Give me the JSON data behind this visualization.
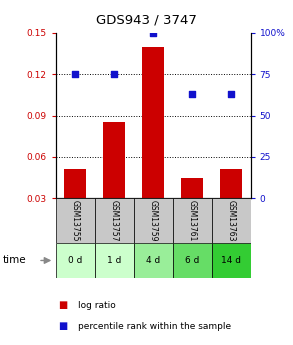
{
  "title": "GDS943 / 3747",
  "samples": [
    "GSM13755",
    "GSM13757",
    "GSM13759",
    "GSM13761",
    "GSM13763"
  ],
  "time_labels": [
    "0 d",
    "1 d",
    "4 d",
    "6 d",
    "14 d"
  ],
  "log_ratio": [
    0.051,
    0.085,
    0.14,
    0.045,
    0.051
  ],
  "percentile_rank": [
    75,
    75,
    100,
    63,
    63
  ],
  "left_ylim": [
    0.03,
    0.15
  ],
  "left_yticks": [
    0.03,
    0.06,
    0.09,
    0.12,
    0.15
  ],
  "left_yticklabels": [
    "0.03",
    "0.06",
    "0.09",
    "0.12",
    "0.15"
  ],
  "right_ylim": [
    0,
    100
  ],
  "right_yticks": [
    0,
    25,
    50,
    75,
    100
  ],
  "right_yticklabels": [
    "0",
    "25",
    "50",
    "75",
    "100%"
  ],
  "bar_color": "#cc0000",
  "dot_color": "#1111cc",
  "bar_width": 0.55,
  "sample_box_color": "#c8c8c8",
  "time_box_colors": [
    "#ccffcc",
    "#ccffcc",
    "#99ee99",
    "#66dd66",
    "#33cc33"
  ],
  "legend_bar_label": "log ratio",
  "legend_dot_label": "percentile rank within the sample",
  "time_arrow_label": "time",
  "dotted_lines": [
    0.06,
    0.09,
    0.12
  ]
}
